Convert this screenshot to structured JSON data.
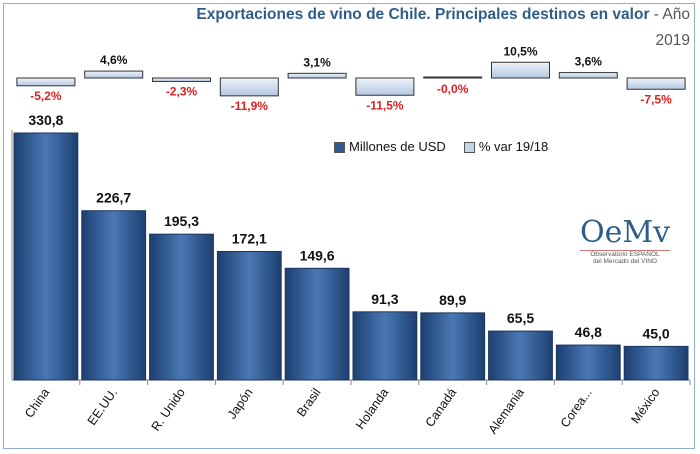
{
  "chart_data": {
    "type": "bar",
    "title": "Exportaciones de vino de Chile. Principales destinos en valor",
    "title_suffix": "- Año",
    "year": "2019",
    "categories": [
      "China",
      "EE.UU.",
      "R. Unido",
      "Japón",
      "Brasil",
      "Holanda",
      "Canadá",
      "Alemania",
      "Corea...",
      "México"
    ],
    "series": [
      {
        "name": "Millones de USD",
        "values": [
          330.8,
          226.7,
          195.3,
          172.1,
          149.6,
          91.3,
          89.9,
          65.5,
          46.8,
          45.0
        ],
        "labels": [
          "330,8",
          "226,7",
          "195,3",
          "172,1",
          "149,6",
          "91,3",
          "89,9",
          "65,5",
          "46,8",
          "45,0"
        ],
        "color": "#2f5a94"
      },
      {
        "name": "% var 19/18",
        "values": [
          -5.2,
          4.6,
          -2.3,
          -11.9,
          3.1,
          -11.5,
          -0.0,
          10.5,
          3.6,
          -7.5
        ],
        "labels": [
          "-5,2%",
          "4,6%",
          "-2,3%",
          "-11,9%",
          "3,1%",
          "-11,5%",
          "-0,0%",
          "10,5%",
          "3,6%",
          "-7,5%"
        ],
        "color": "#c6d6ea"
      }
    ],
    "ylim": [
      0,
      340
    ],
    "grid": false,
    "legend": "top-center",
    "negative_label_color": "#e02020"
  },
  "logo": {
    "mark": "OeMv",
    "line1": "Observatorio ESPAÑOL",
    "line2": "del Mercado del VINO"
  }
}
